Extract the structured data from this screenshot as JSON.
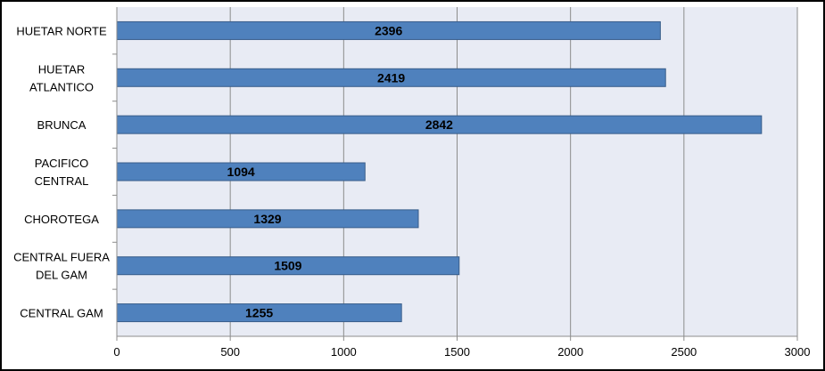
{
  "chart_data": {
    "type": "bar",
    "orientation": "horizontal",
    "categories": [
      "HUETAR NORTE",
      "HUETAR ATLANTICO",
      "BRUNCA",
      "PACIFICO CENTRAL",
      "CHOROTEGA",
      "CENTRAL FUERA DEL GAM",
      "CENTRAL GAM"
    ],
    "category_lines": [
      [
        "HUETAR NORTE"
      ],
      [
        "HUETAR",
        "ATLANTICO"
      ],
      [
        "BRUNCA"
      ],
      [
        "PACIFICO",
        "CENTRAL"
      ],
      [
        "CHOROTEGA"
      ],
      [
        "CENTRAL FUERA",
        "DEL GAM"
      ],
      [
        "CENTRAL GAM"
      ]
    ],
    "values": [
      2396,
      2419,
      2842,
      1094,
      1329,
      1509,
      1255
    ],
    "data_labels": [
      "2396",
      "2419",
      "2842",
      "1094",
      "1329",
      "1509",
      "1255"
    ],
    "xlim": [
      0,
      3000
    ],
    "x_ticks": [
      0,
      500,
      1000,
      1500,
      2000,
      2500,
      3000
    ],
    "x_tick_labels": [
      "0",
      "500",
      "1000",
      "1500",
      "2000",
      "2500",
      "3000"
    ],
    "grid": "vertical",
    "legend": "none",
    "title": "",
    "xlabel": "",
    "ylabel": "",
    "colors": {
      "bar_fill": "#4f81bd",
      "bar_stroke": "#385d8a",
      "plot_background": "#e8ebf4",
      "gridline": "#8c8c8c",
      "axis": "#8c8c8c"
    }
  }
}
